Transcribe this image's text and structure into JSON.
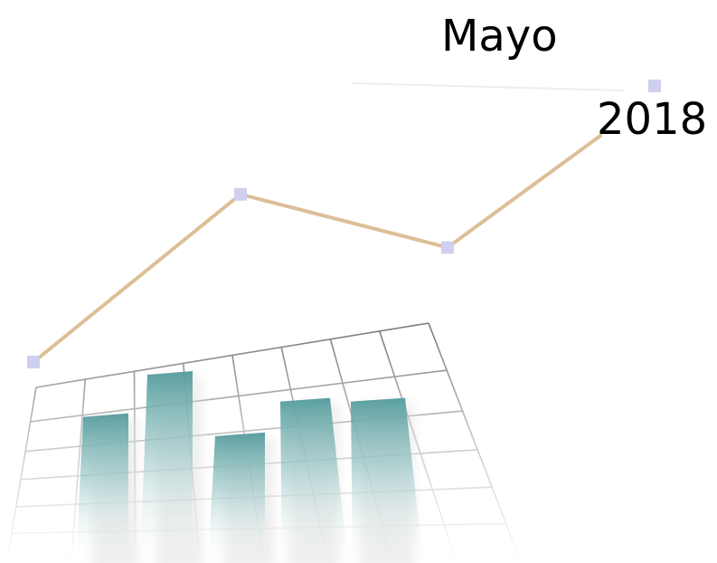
{
  "heading": {
    "month": "Mayo",
    "year": "2018"
  },
  "illustration": {
    "line_trend": [
      0.0,
      0.82,
      0.56,
      1.35
    ],
    "bar_levels": [
      0.78,
      1.0,
      0.68,
      0.86,
      0.86
    ],
    "colors": {
      "line": "#dcbf96",
      "marker": "#cfd0ef",
      "bar_top": "#5a9fa0",
      "grid": "#6e6e6e",
      "text": "#000000"
    }
  }
}
